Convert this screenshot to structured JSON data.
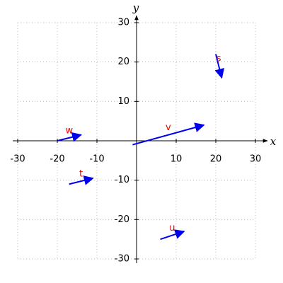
{
  "chart_data": {
    "type": "vector",
    "x_label": "x",
    "y_label": "y",
    "xlim": [
      -30,
      30
    ],
    "ylim": [
      -30,
      30
    ],
    "xticks": [
      -30,
      -20,
      -10,
      10,
      20,
      30
    ],
    "yticks": [
      -30,
      -20,
      -10,
      10,
      20,
      30
    ],
    "grid": true,
    "color": "#0000ee",
    "label_color": "#ee0000",
    "vectors": [
      {
        "label": "s",
        "start": [
          20,
          22
        ],
        "end": [
          21.5,
          16
        ]
      },
      {
        "label": "v",
        "start": [
          -1,
          -1
        ],
        "end": [
          17,
          4
        ]
      },
      {
        "label": "w",
        "start": [
          -20,
          0
        ],
        "end": [
          -14,
          1.5
        ]
      },
      {
        "label": "t",
        "start": [
          -17,
          -11
        ],
        "end": [
          -11,
          -9.5
        ]
      },
      {
        "label": "u",
        "start": [
          6,
          -25
        ],
        "end": [
          12,
          -23
        ]
      }
    ]
  }
}
